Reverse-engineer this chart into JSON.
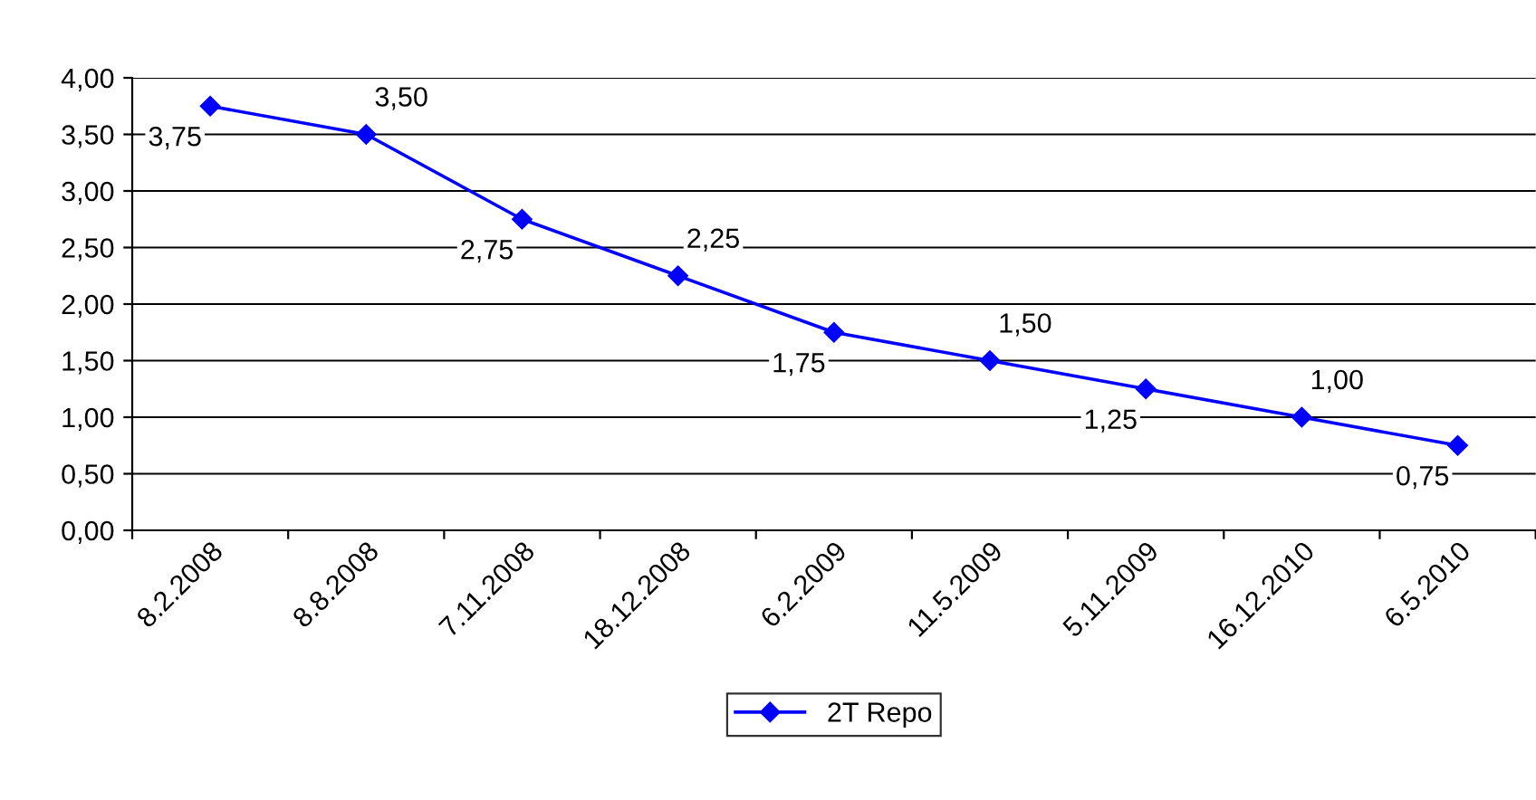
{
  "chart_data": {
    "type": "line",
    "categories": [
      "8.2.2008",
      "8.8.2008",
      "7.11.2008",
      "18.12.2008",
      "6.2.2009",
      "11.5.2009",
      "5.11.2009",
      "16.12.2010",
      "6.5.2010"
    ],
    "series": [
      {
        "name": "2T Repo",
        "color": "#0000ff",
        "values": [
          3.75,
          3.5,
          2.75,
          2.25,
          1.75,
          1.5,
          1.25,
          1.0,
          0.75
        ],
        "value_labels": [
          "3,75",
          "3,50",
          "2,75",
          "2,25",
          "1,75",
          "1,50",
          "1,25",
          "1,00",
          "0,75"
        ]
      }
    ],
    "ylim": [
      0,
      4
    ],
    "yticks": [
      {
        "value": 0,
        "label": "0,00"
      },
      {
        "value": 0.5,
        "label": "0,50"
      },
      {
        "value": 1,
        "label": "1,00"
      },
      {
        "value": 1.5,
        "label": "1,50"
      },
      {
        "value": 2,
        "label": "2,00"
      },
      {
        "value": 2.5,
        "label": "2,50"
      },
      {
        "value": 3,
        "label": "3,00"
      },
      {
        "value": 3.5,
        "label": "3,50"
      },
      {
        "value": 4,
        "label": "4,00"
      }
    ],
    "grid": "y",
    "legend": "bottom",
    "marker": "diamond",
    "line_style": "solid"
  }
}
